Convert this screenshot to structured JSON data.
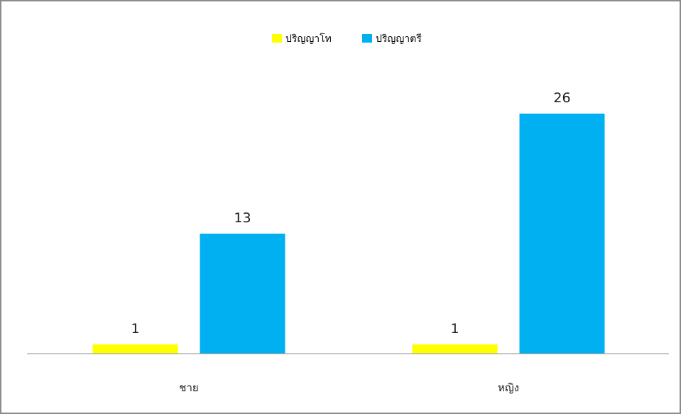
{
  "chart_data": {
    "type": "bar",
    "title": "",
    "xlabel": "",
    "ylabel": "",
    "categories": [
      "ชาย",
      "หญิง"
    ],
    "series": [
      {
        "name": "ปริญญาโท",
        "values": [
          1,
          1
        ],
        "color": "#ffff00"
      },
      {
        "name": "ปริญญาตรี",
        "values": [
          13,
          26
        ],
        "color": "#00b0f0"
      }
    ],
    "ylim": [
      0,
      30
    ],
    "grid": false,
    "legend_position": "top",
    "data_labels": true,
    "axis_color": "#8c8c8c"
  }
}
